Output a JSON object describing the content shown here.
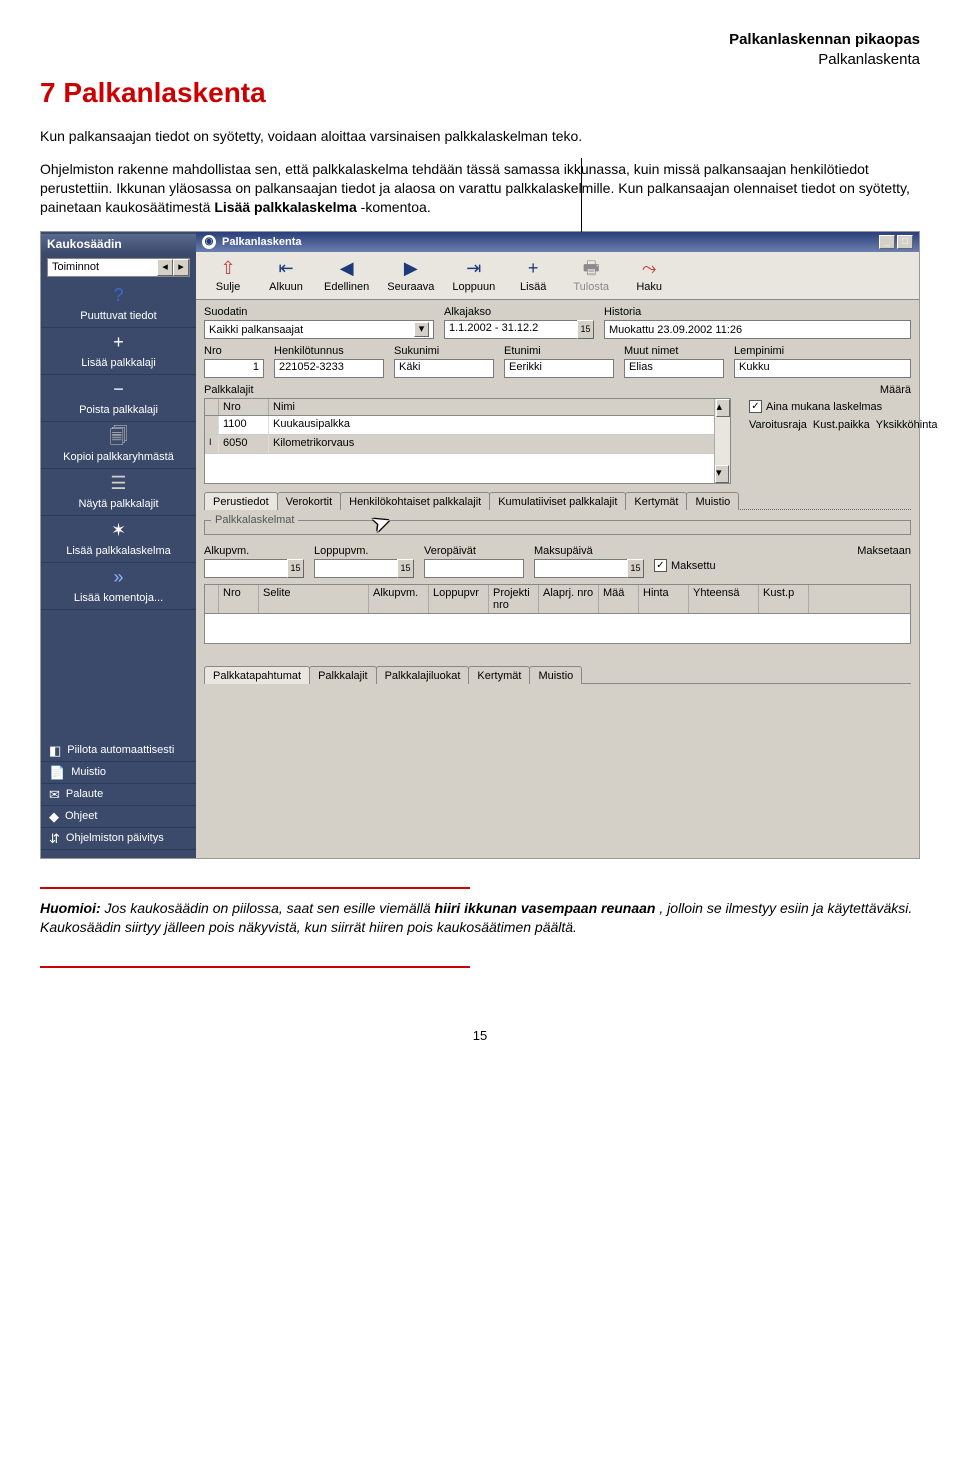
{
  "header": {
    "line1": "Palkanlaskennan pikaopas",
    "line2": "Palkanlaskenta"
  },
  "title": "7 Palkanlaskenta",
  "para1": "Kun palkansaajan tiedot on syötetty, voidaan aloittaa varsinaisen palkkalaskelman teko.",
  "para2a": "Ohjelmiston rakenne mahdollistaa sen, että palkkalaskelma tehdään tässä samassa ikkunassa, kuin missä palkansaajan henkilötiedot perustettiin. Ikkunan yläosassa on palkansaajan tiedot ja alaosa on varattu palkkalaskelmille. Kun palkansaajan olennaiset tiedot on syötetty, painetaan kaukosäätimestä ",
  "para2bold": "Lisää palkkalaskelma",
  "para2b": "-komentoa.",
  "sidebar": {
    "title": "Kaukosäädin",
    "dropdown": "Toiminnot",
    "items": [
      {
        "icon": "?",
        "label": "Puuttuvat tiedot",
        "iconColor": "#3a69c7"
      },
      {
        "icon": "+",
        "label": "Lisää palkkalaji",
        "iconColor": "#ffffff"
      },
      {
        "icon": "−",
        "label": "Poista palkkalaji",
        "iconColor": "#ffffff"
      },
      {
        "icon": "🗐",
        "label": "Kopioi palkkaryhmästä",
        "iconColor": "#d4d0c8"
      },
      {
        "icon": "☰",
        "label": "Näytä palkkalajit",
        "iconColor": "#d4d0c8"
      },
      {
        "icon": "✶",
        "label": "Lisää palkkalaskelma",
        "iconColor": "#ffffff"
      },
      {
        "icon": "»",
        "label": "Lisää komentoja...",
        "iconColor": "#8fb4ff"
      }
    ]
  },
  "sidebar2": {
    "items": [
      {
        "icon": "◧",
        "label": "Piilota automaattisesti"
      },
      {
        "icon": "📄",
        "label": "Muistio"
      },
      {
        "icon": "✉",
        "label": "Palaute"
      },
      {
        "icon": "◆",
        "label": "Ohjeet"
      },
      {
        "icon": "⇵",
        "label": "Ohjelmiston päivitys"
      }
    ]
  },
  "window": {
    "title": "Palkanlaskenta"
  },
  "toolbar": [
    {
      "icon": "⇧",
      "label": "Sulje",
      "color": "#c23a3a"
    },
    {
      "icon": "⇤",
      "label": "Alkuun",
      "color": "#1d3b7a"
    },
    {
      "icon": "◀",
      "label": "Edellinen",
      "color": "#1d3b7a"
    },
    {
      "icon": "▶",
      "label": "Seuraava",
      "color": "#1d3b7a"
    },
    {
      "icon": "⇥",
      "label": "Loppuun",
      "color": "#1d3b7a"
    },
    {
      "icon": "+",
      "label": "Lisää",
      "color": "#1d3b7a"
    },
    {
      "icon": "🖶",
      "label": "Tulosta",
      "color": "#8a8a8a",
      "disabled": true
    },
    {
      "icon": "⤳",
      "label": "Haku",
      "color": "#c23a3a"
    }
  ],
  "filterRow": {
    "suodatin_label": "Suodatin",
    "suodatin_value": "Kaikki palkansaajat",
    "alkajakso_label": "Alkajakso",
    "alkajakso_value": "1.1.2002 - 31.12.2",
    "historia_label": "Historia",
    "historia_value": "Muokattu 23.09.2002 11:26"
  },
  "personRow": {
    "nro_label": "Nro",
    "nro_value": "1",
    "ht_label": "Henkilötunnus",
    "ht_value": "221052-3233",
    "suku_label": "Sukunimi",
    "suku_value": "Käki",
    "etu_label": "Etunimi",
    "etu_value": "Eerikki",
    "muut_label": "Muut nimet",
    "muut_value": "Elias",
    "lempi_label": "Lempinimi",
    "lempi_value": "Kukku"
  },
  "palkkalajit": {
    "group_label": "Palkkalajit",
    "maara_label": "Määrä",
    "cols": {
      "nro": "Nro",
      "nimi": "Nimi"
    },
    "rows": [
      {
        "nro": "1100",
        "nimi": "Kuukausipalkka"
      },
      {
        "nro": "6050",
        "nimi": "Kilometrikorvaus"
      }
    ],
    "side": {
      "aina": "Aina mukana laskelmas",
      "varo": "Varoitusraja",
      "kust": "Kust.paikka",
      "yks": "Yksikköhinta"
    }
  },
  "tabs1": [
    "Perustiedot",
    "Verokortit",
    "Henkilökohtaiset palkkalajit",
    "Kumulatiiviset palkkalajit",
    "Kertymät",
    "Muistio"
  ],
  "laskelmat_label": "Palkkalaskelmat",
  "laskelmaRow": {
    "alku": "Alkupvm.",
    "loppu": "Loppupvm.",
    "vero": "Veropäivät",
    "maksu": "Maksupäivä",
    "maksetaan": "Maksetaan",
    "maksettu": "Maksettu"
  },
  "detailCols": [
    "Nro",
    "Selite",
    "Alkupvm.",
    "Loppupvr",
    "Projekti nro",
    "Alaprj. nro",
    "Mää",
    "Hinta",
    "Yhteensä",
    "Kust.p"
  ],
  "tabs2": [
    "Palkkatapahtumat",
    "Palkkalajit",
    "Palkkalajiluokat",
    "Kertymät",
    "Muistio"
  ],
  "note": {
    "lead": "Huomioi:",
    "body1": " Jos kaukosäädin on piilossa, saat sen esille viemällä ",
    "bold1": "hiiri ikkunan vasempaan reunaan",
    "body2": ", jolloin se ilmestyy esiin ja käytettäväksi. Kaukosäädin siirtyy jälleen pois näkyvistä, kun siirrät hiiren pois kaukosäätimen päältä."
  },
  "pageNumber": "15"
}
